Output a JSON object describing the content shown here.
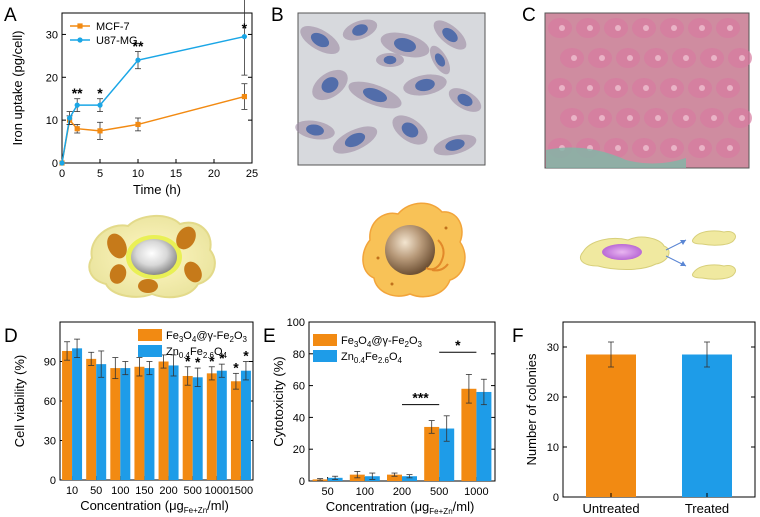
{
  "colors": {
    "orange": "#f28a12",
    "blue": "#1aa6e6",
    "blue_bar": "#1e9ce8",
    "cell_yellow": "#f0e9a0",
    "cell_orange": "#f8c257"
  },
  "panels": {
    "A": "A",
    "B": "B",
    "C": "C",
    "D": "D",
    "E": "E",
    "F": "F"
  },
  "chart_data": [
    {
      "panel": "A",
      "type": "line",
      "xlabel": "Time (h)",
      "ylabel": "Iron uptake (pg/cell)",
      "xlim": [
        0,
        25
      ],
      "ylim": [
        0,
        35
      ],
      "xticks": [
        0,
        5,
        10,
        15,
        20,
        25
      ],
      "yticks": [
        0,
        10,
        20,
        30
      ],
      "x": [
        0,
        1,
        2,
        5,
        10,
        24
      ],
      "series": [
        {
          "name": "MCF-7",
          "color": "#f28a12",
          "values": [
            0,
            10,
            8,
            7.5,
            9,
            15.5
          ],
          "errors": [
            0,
            1,
            1,
            2,
            1.5,
            3
          ]
        },
        {
          "name": "U87-MG",
          "color": "#1aa6e6",
          "values": [
            0,
            10.5,
            13.5,
            13.5,
            24,
            29.5
          ],
          "errors": [
            0,
            1.5,
            1.5,
            1.5,
            2,
            9
          ]
        }
      ],
      "annotations": [
        {
          "x": 2,
          "y": 17,
          "text": "**"
        },
        {
          "x": 5,
          "y": 17,
          "text": "*"
        },
        {
          "x": 10,
          "y": 28,
          "text": "**"
        },
        {
          "x": 24,
          "y": 40,
          "text": "*"
        }
      ]
    },
    {
      "panel": "D",
      "type": "bar",
      "xlabel_main": "Concentration (μg",
      "xlabel_sub": "Fe+Zn",
      "xlabel_end": "/ml)",
      "ylabel": "Cell viability (%)",
      "ylim": [
        0,
        120
      ],
      "yticks": [
        0,
        30,
        60,
        90
      ],
      "categories": [
        "10",
        "50",
        "100",
        "150",
        "200",
        "500",
        "1000",
        "1500"
      ],
      "series": [
        {
          "name": "Fe3O4@γ-Fe2O3",
          "color": "#f28a12",
          "values": [
            98,
            92,
            85,
            86,
            90,
            79,
            81,
            75
          ],
          "errors": [
            7,
            5,
            8,
            7,
            5,
            7,
            5,
            6
          ]
        },
        {
          "name": "Zn0.4Fe2.6O4",
          "color": "#1e9ce8",
          "values": [
            100,
            88,
            85,
            85,
            87,
            78,
            83,
            83
          ],
          "errors": [
            7,
            10,
            5,
            5,
            8,
            7,
            5,
            7
          ]
        }
      ],
      "legend": [
        {
          "parts": [
            "Fe",
            "3",
            "O",
            "4",
            "@γ-Fe",
            "2",
            "O",
            "3"
          ]
        },
        {
          "parts": [
            "Zn",
            "0.4",
            "Fe",
            "2.6",
            "O",
            "4"
          ]
        }
      ],
      "annotations": [
        "*",
        "*",
        "*",
        "*",
        "*",
        "*"
      ]
    },
    {
      "panel": "E",
      "type": "bar",
      "xlabel_main": "Concentration (μg",
      "xlabel_sub": "Fe+Zn",
      "xlabel_end": "/ml)",
      "ylabel": "Cytotoxicity (%)",
      "ylim": [
        0,
        100
      ],
      "yticks": [
        0,
        20,
        40,
        60,
        80,
        100
      ],
      "categories": [
        "50",
        "100",
        "200",
        "500",
        "1000"
      ],
      "series": [
        {
          "name": "Fe3O4@γ-Fe2O3",
          "color": "#f28a12",
          "values": [
            1,
            4,
            4,
            34,
            58
          ],
          "errors": [
            0.5,
            2,
            1,
            4,
            9
          ]
        },
        {
          "name": "Zn0.4Fe2.6O4",
          "color": "#1e9ce8",
          "values": [
            2,
            3,
            3,
            33,
            56
          ],
          "errors": [
            1,
            2,
            1,
            8,
            8
          ]
        }
      ],
      "annotations": [
        "***",
        "*"
      ]
    },
    {
      "panel": "F",
      "type": "bar",
      "ylabel": "Number of colonies",
      "ylim": [
        0,
        35
      ],
      "yticks": [
        0,
        10,
        20,
        30
      ],
      "categories": [
        "Untreated",
        "Treated"
      ],
      "values": [
        28.5,
        28.5
      ],
      "errors": [
        2.5,
        2.5
      ],
      "colors": [
        "#f28a12",
        "#1e9ce8"
      ]
    }
  ]
}
